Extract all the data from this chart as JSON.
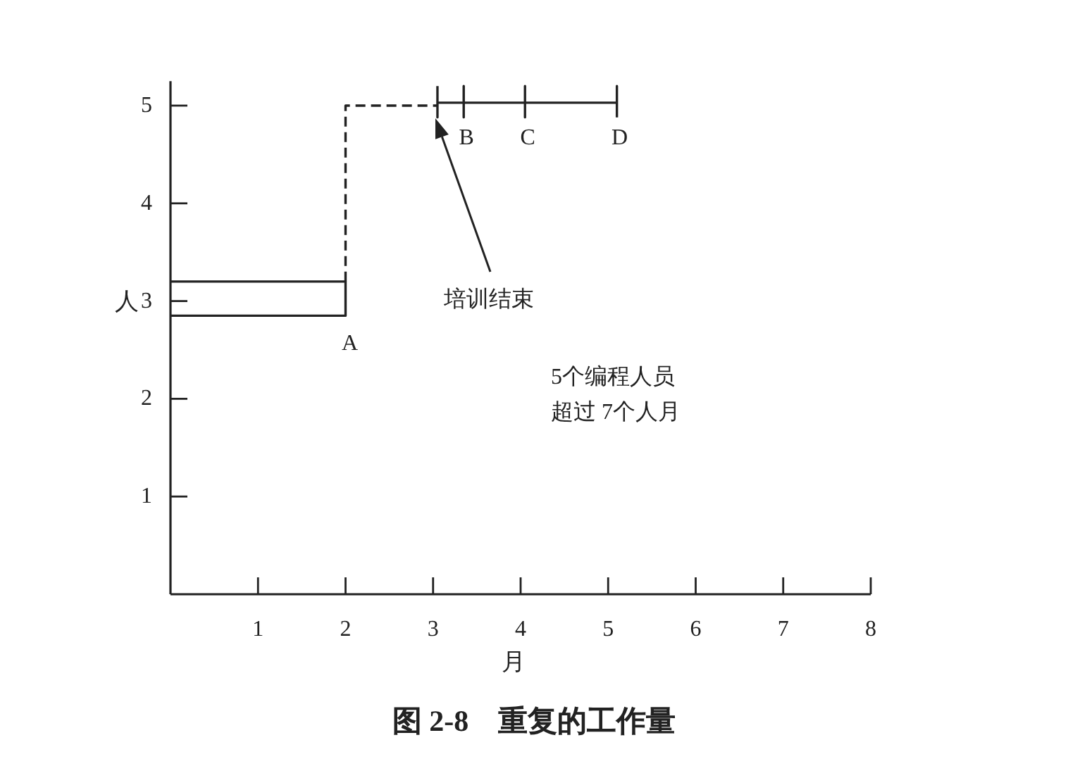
{
  "chart_data": {
    "type": "line",
    "title": "图 2-8　重复的工作量",
    "xlabel": "月",
    "ylabel": "人",
    "xlim": [
      0,
      8
    ],
    "xticks": [
      1,
      2,
      3,
      4,
      5,
      6,
      7,
      8
    ],
    "ylim": [
      0,
      5.25
    ],
    "yticks": [
      1,
      2,
      3,
      4,
      5
    ],
    "grid": false,
    "series": [
      {
        "color": "#222222",
        "line_style": "solid",
        "x": [
          0,
          2,
          2,
          0
        ],
        "values": [
          3.2,
          3.2,
          2.85,
          2.85
        ]
      },
      {
        "color": "#222222",
        "line_style": "dashed",
        "x": [
          2,
          2,
          3.05
        ],
        "values": [
          3.2,
          5,
          5
        ]
      },
      {
        "color": "#222222",
        "line_style": "solid",
        "x": [
          3.05,
          3.05,
          3.05,
          3.35,
          3.35,
          3.35,
          3.35,
          4.05,
          4.05,
          4.05,
          4.05,
          5.1,
          5.1,
          5.1
        ],
        "values": [
          5.2,
          4.88,
          5.03,
          5.03,
          5.2,
          4.88,
          5.03,
          5.03,
          5.2,
          4.88,
          5.03,
          5.03,
          5.2,
          4.88
        ]
      }
    ],
    "annotations": [
      "培训结束",
      {
        "text": "A",
        "x": 2,
        "y": 2.85
      },
      {
        "text": "B",
        "x": 3.35,
        "y": 5.03
      },
      {
        "text": "C",
        "x": 4.05,
        "y": 5.03
      },
      {
        "text": "D",
        "x": 5.1,
        "y": 5.03
      },
      "5个编程人员",
      "超过 7个人月"
    ]
  }
}
